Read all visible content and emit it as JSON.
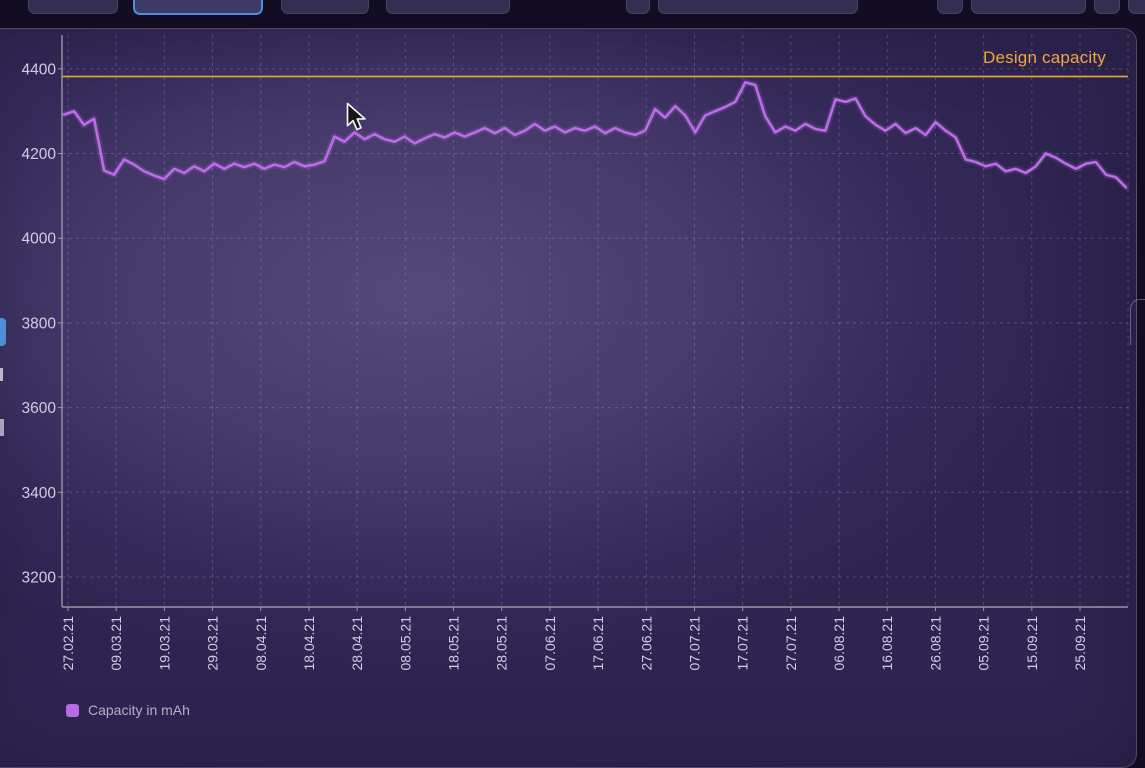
{
  "toolbar": {
    "selected_index": 1,
    "button_count": 9
  },
  "chart": {
    "design_capacity_label": "Design capacity",
    "legend": {
      "label": "Capacity in mAh",
      "swatch_color": "#b869e6"
    }
  },
  "colors": {
    "accent_blue": "#4e90d8",
    "design_line": "#dd9f3f",
    "design_label": "#efa83f",
    "series": "#bb6de8",
    "axis": "#9b95ab",
    "grid": "rgba(199,191,224,0.26)",
    "tick_label": "#d3cde2",
    "legend_text": "#b6afc4"
  },
  "chart_data": {
    "type": "line",
    "title": "",
    "xlabel": "",
    "ylabel": "",
    "grid": "dashed",
    "legend_position": "bottom-left",
    "y_ticks": [
      3200,
      3400,
      3600,
      3800,
      4000,
      4200,
      4400
    ],
    "ylim": [
      3129,
      4480
    ],
    "design_capacity": 4382,
    "design_capacity_color": "#dd9f3f",
    "x_tick_labels": [
      "27.02.21",
      "09.03.21",
      "19.03.21",
      "29.03.21",
      "08.04.21",
      "18.04.21",
      "28.04.21",
      "08.05.21",
      "18.05.21",
      "28.05.21",
      "07.06.21",
      "17.06.21",
      "27.06.21",
      "07.07.21",
      "17.07.21",
      "27.07.21",
      "06.08.21",
      "16.08.21",
      "26.08.21",
      "05.09.21",
      "15.09.21",
      "25.09.21"
    ],
    "series": [
      {
        "name": "Capacity in mAh",
        "color": "#bb6de8",
        "values": [
          4292,
          4300,
          4268,
          4282,
          4160,
          4150,
          4186,
          4174,
          4158,
          4148,
          4140,
          4164,
          4154,
          4170,
          4158,
          4176,
          4164,
          4176,
          4168,
          4176,
          4164,
          4174,
          4168,
          4180,
          4170,
          4174,
          4182,
          4240,
          4228,
          4250,
          4234,
          4246,
          4234,
          4228,
          4240,
          4224,
          4236,
          4246,
          4238,
          4250,
          4240,
          4250,
          4260,
          4248,
          4260,
          4244,
          4254,
          4270,
          4254,
          4264,
          4250,
          4260,
          4254,
          4264,
          4248,
          4260,
          4250,
          4244,
          4254,
          4305,
          4285,
          4312,
          4290,
          4250,
          4290,
          4300,
          4310,
          4322,
          4368,
          4362,
          4288,
          4250,
          4264,
          4254,
          4270,
          4258,
          4254,
          4328,
          4322,
          4330,
          4288,
          4268,
          4254,
          4270,
          4248,
          4260,
          4244,
          4274,
          4254,
          4238,
          4186,
          4180,
          4170,
          4176,
          4158,
          4164,
          4154,
          4170,
          4200,
          4190,
          4176,
          4164,
          4176,
          4180,
          4150,
          4144,
          4120
        ]
      }
    ]
  }
}
